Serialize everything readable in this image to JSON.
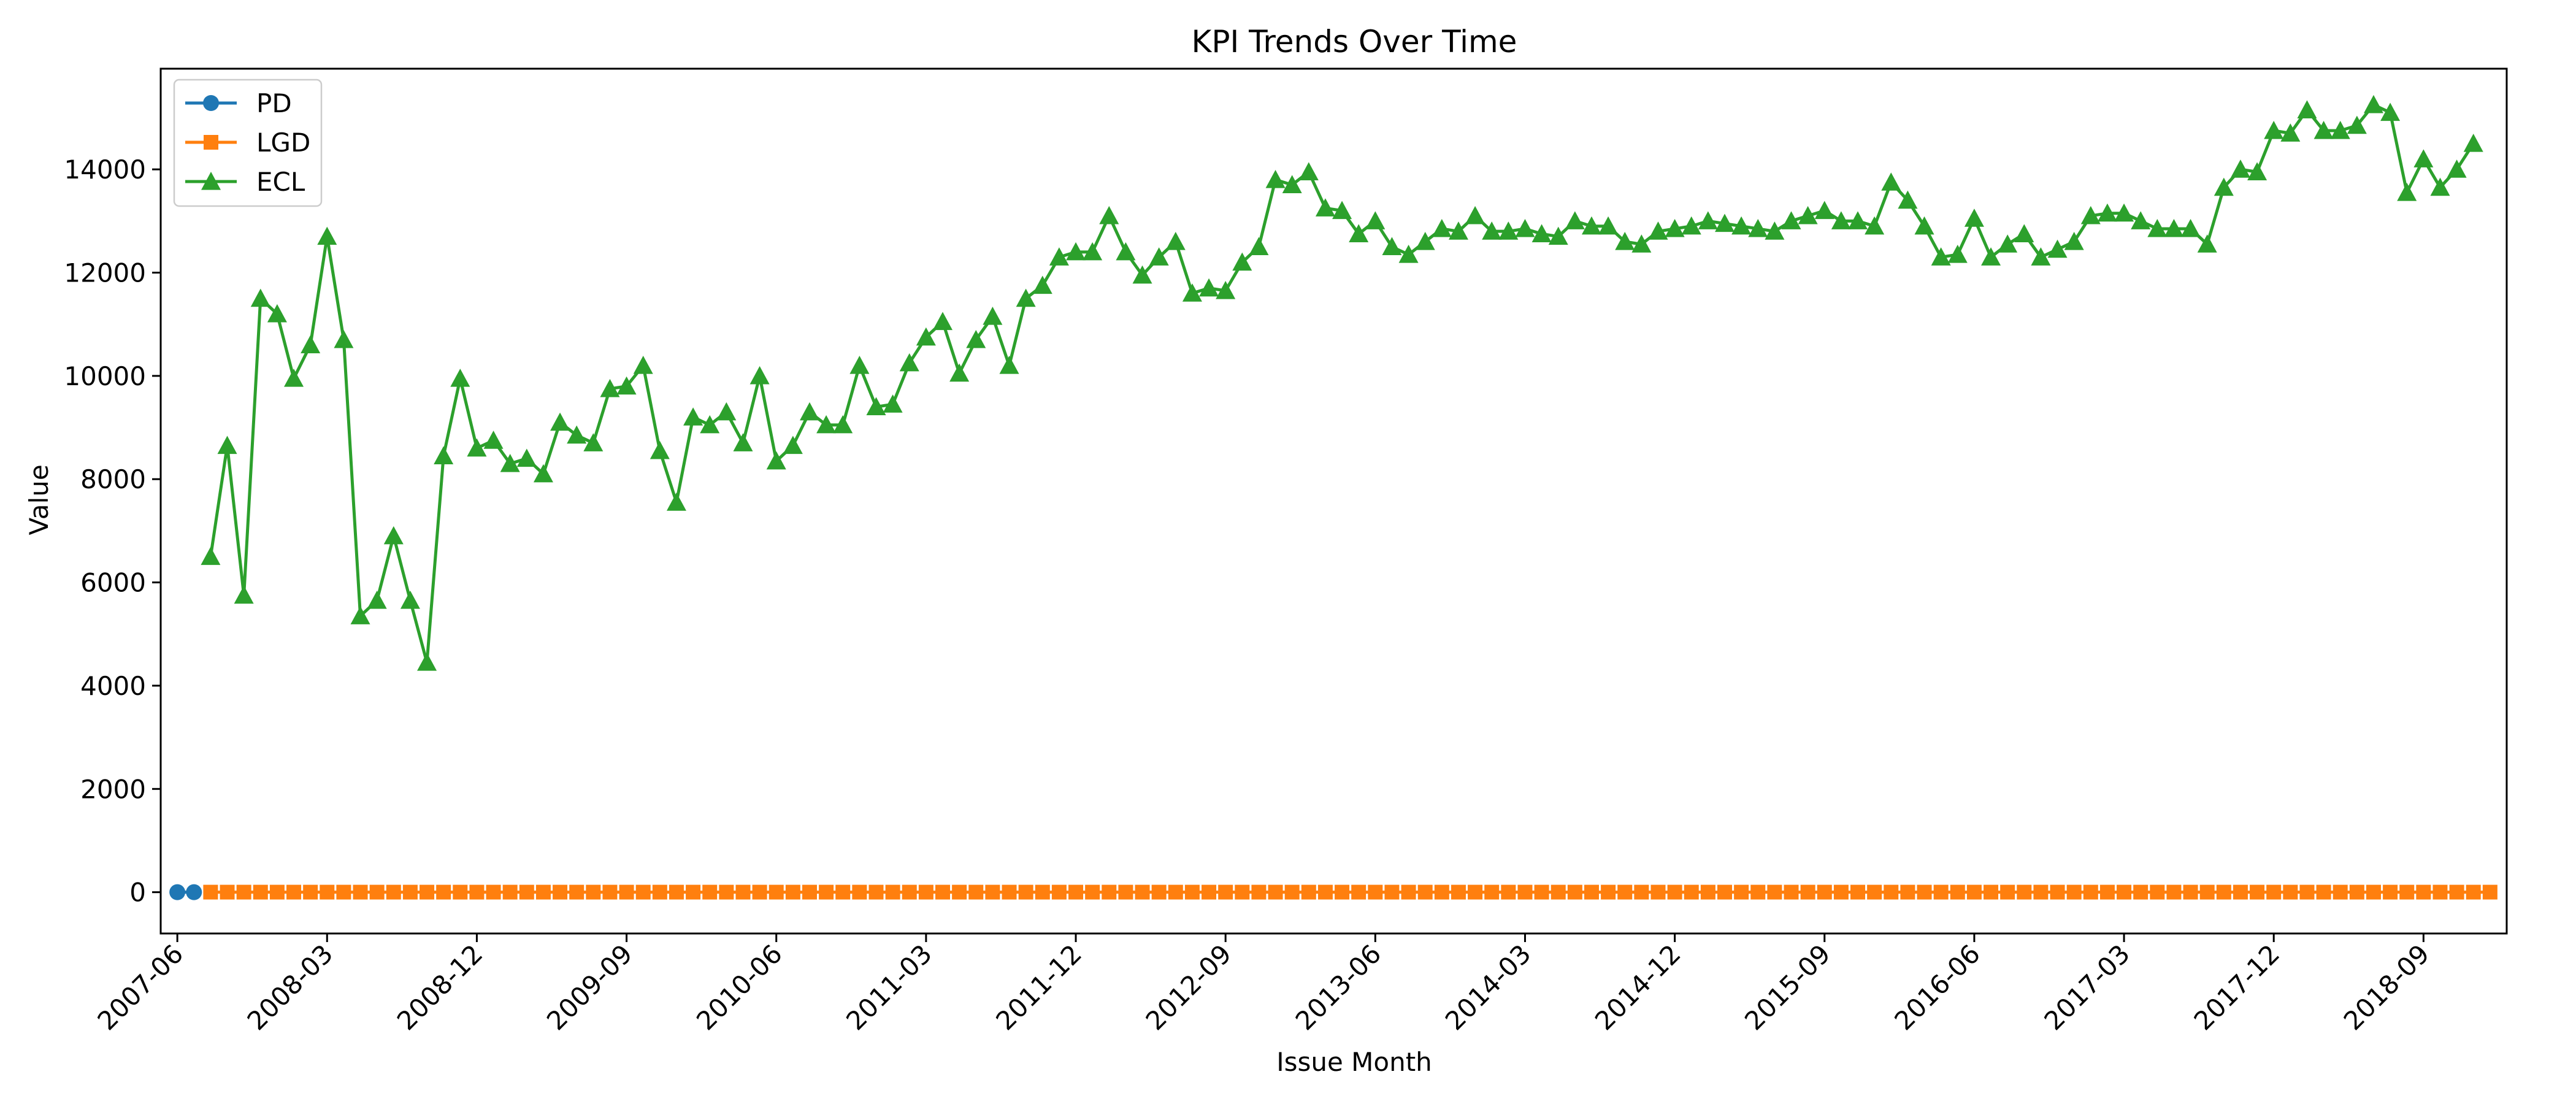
{
  "chart_data": {
    "type": "line",
    "title": "KPI Trends Over Time",
    "xlabel": "Issue Month",
    "ylabel": "Value",
    "x_start": "2007-06",
    "x_tick_labels": [
      "2007-06",
      "2008-03",
      "2008-12",
      "2009-09",
      "2010-06",
      "2011-03",
      "2011-12",
      "2012-09",
      "2013-06",
      "2014-03",
      "2014-12",
      "2015-09",
      "2016-06",
      "2017-03",
      "2017-12",
      "2018-09"
    ],
    "y_ticks": [
      0,
      2000,
      4000,
      6000,
      8000,
      10000,
      12000,
      14000
    ],
    "xlim": [
      "2007-05",
      "2019-02"
    ],
    "ylim": [
      -800,
      15950
    ],
    "legend_position": "upper-left",
    "grid": false,
    "series": [
      {
        "name": "PD",
        "color": "#1f77b4",
        "marker": "circle",
        "start": "2007-06",
        "values": [
          0.02,
          0.03
        ]
      },
      {
        "name": "LGD",
        "color": "#ff7f0e",
        "marker": "square",
        "start": "2007-08",
        "end": "2019-01",
        "constant": 1
      },
      {
        "name": "ECL",
        "color": "#2ca02c",
        "marker": "triangle",
        "start": "2007-08",
        "values": [
          6500,
          8650,
          5750,
          11500,
          11200,
          9950,
          10600,
          12700,
          10700,
          5350,
          5650,
          6900,
          5650,
          4450,
          8450,
          9950,
          8600,
          8750,
          8300,
          8400,
          8100,
          9100,
          8850,
          8700,
          9750,
          9800,
          10200,
          8550,
          7550,
          9200,
          9050,
          9300,
          8700,
          10000,
          8350,
          8650,
          9300,
          9050,
          9050,
          10200,
          9400,
          9450,
          10250,
          10750,
          11050,
          10050,
          10700,
          11150,
          10200,
          11500,
          11750,
          12300,
          12400,
          12400,
          13100,
          12400,
          11950,
          12300,
          12600,
          11600,
          11700,
          11650,
          12200,
          12500,
          13800,
          13700,
          13950,
          13250,
          13200,
          12750,
          13000,
          12500,
          12350,
          12600,
          12850,
          12800,
          13100,
          12800,
          12800,
          12850,
          12750,
          12700,
          13000,
          12900,
          12900,
          12600,
          12550,
          12800,
          12850,
          12900,
          13000,
          12950,
          12900,
          12850,
          12800,
          13000,
          13100,
          13200,
          13000,
          13000,
          12900,
          13750,
          13400,
          12900,
          12300,
          12350,
          13050,
          12300,
          12550,
          12750,
          12300,
          12450,
          12600,
          13100,
          13150,
          13150,
          13000,
          12850,
          12850,
          12850,
          12550,
          13650,
          14000,
          13950,
          14750,
          14700,
          15150,
          14750,
          14750,
          14850,
          15250,
          15100,
          13550,
          14200,
          13650,
          14000,
          14500
        ]
      }
    ]
  }
}
